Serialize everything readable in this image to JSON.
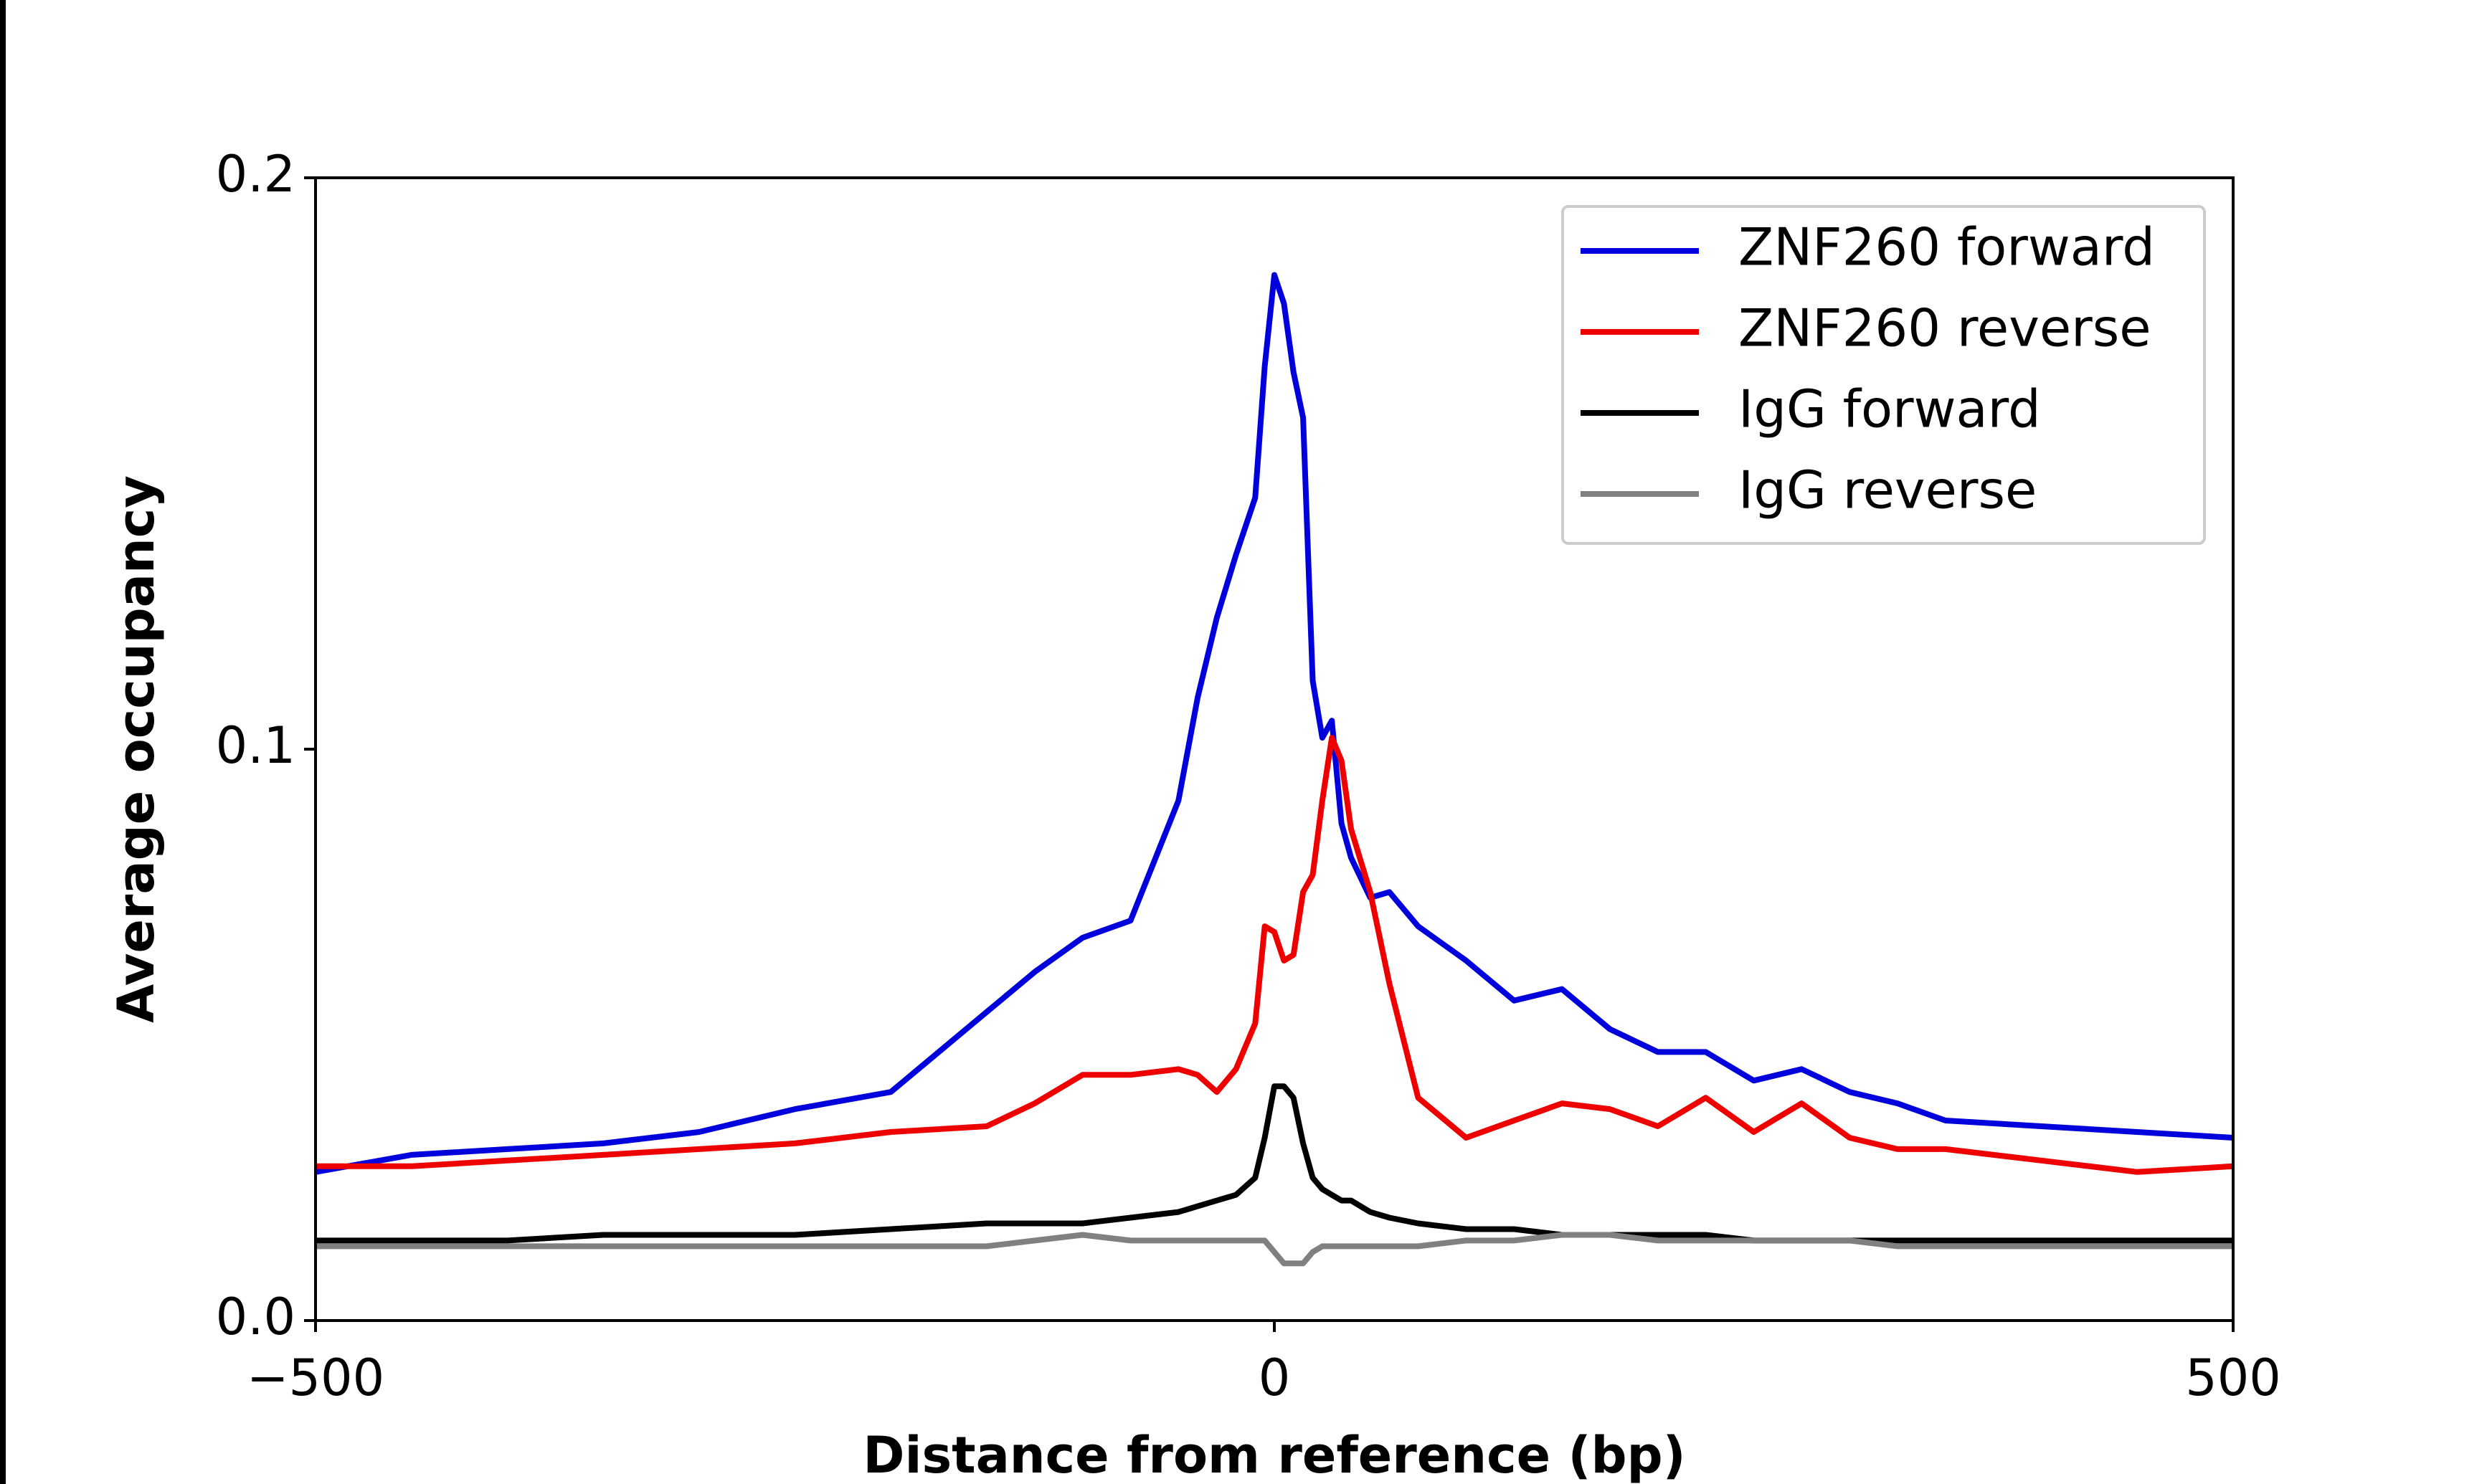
{
  "chart_data": {
    "type": "line",
    "xlabel": "Distance from reference (bp)",
    "ylabel": "Average occupancy",
    "x": [
      -500,
      -450,
      -400,
      -350,
      -300,
      -250,
      -200,
      -150,
      -125,
      -100,
      -75,
      -50,
      -40,
      -30,
      -20,
      -10,
      -5,
      0,
      5,
      10,
      15,
      20,
      25,
      30,
      35,
      40,
      50,
      60,
      75,
      100,
      125,
      150,
      175,
      200,
      225,
      250,
      275,
      300,
      325,
      350,
      400,
      450,
      500
    ],
    "series": [
      {
        "name": "ZNF260 forward",
        "color": "#0000dd",
        "values": [
          0.026,
          0.029,
          0.03,
          0.031,
          0.033,
          0.037,
          0.04,
          0.054,
          0.061,
          0.067,
          0.07,
          0.091,
          0.109,
          0.123,
          0.134,
          0.144,
          0.167,
          0.183,
          0.178,
          0.166,
          0.158,
          0.112,
          0.102,
          0.105,
          0.087,
          0.081,
          0.074,
          0.075,
          0.069,
          0.063,
          0.056,
          0.058,
          0.051,
          0.047,
          0.047,
          0.042,
          0.044,
          0.04,
          0.038,
          0.035,
          0.034,
          0.033,
          0.032
        ]
      },
      {
        "name": "ZNF260 reverse",
        "color": "#ee0000",
        "values": [
          0.027,
          0.027,
          0.028,
          0.029,
          0.03,
          0.031,
          0.033,
          0.034,
          0.038,
          0.043,
          0.043,
          0.044,
          0.043,
          0.04,
          0.044,
          0.052,
          0.069,
          0.068,
          0.063,
          0.064,
          0.075,
          0.078,
          0.091,
          0.102,
          0.098,
          0.086,
          0.075,
          0.059,
          0.039,
          0.032,
          0.035,
          0.038,
          0.037,
          0.034,
          0.039,
          0.033,
          0.038,
          0.032,
          0.03,
          0.03,
          0.028,
          0.026,
          0.027
        ]
      },
      {
        "name": "IgG forward",
        "color": "#000000",
        "values": [
          0.014,
          0.014,
          0.014,
          0.015,
          0.015,
          0.015,
          0.016,
          0.017,
          0.017,
          0.017,
          0.018,
          0.019,
          0.02,
          0.021,
          0.022,
          0.025,
          0.032,
          0.041,
          0.041,
          0.039,
          0.031,
          0.025,
          0.023,
          0.022,
          0.021,
          0.021,
          0.019,
          0.018,
          0.017,
          0.016,
          0.016,
          0.015,
          0.015,
          0.015,
          0.015,
          0.014,
          0.014,
          0.014,
          0.014,
          0.014,
          0.014,
          0.014,
          0.014
        ]
      },
      {
        "name": "IgG reverse",
        "color": "#808080",
        "values": [
          0.013,
          0.013,
          0.013,
          0.013,
          0.013,
          0.013,
          0.013,
          0.013,
          0.014,
          0.015,
          0.014,
          0.014,
          0.014,
          0.014,
          0.014,
          0.014,
          0.014,
          0.012,
          0.01,
          0.01,
          0.01,
          0.012,
          0.013,
          0.013,
          0.013,
          0.013,
          0.013,
          0.013,
          0.013,
          0.014,
          0.014,
          0.015,
          0.015,
          0.014,
          0.014,
          0.014,
          0.014,
          0.014,
          0.013,
          0.013,
          0.013,
          0.013,
          0.013
        ]
      }
    ],
    "xlim": [
      -500,
      500
    ],
    "ylim": [
      0,
      0.2
    ],
    "xticks": [
      {
        "value": -500,
        "label": "−500"
      },
      0,
      500
    ],
    "yticks": [
      {
        "value": 0,
        "label": "0.0"
      },
      0.1,
      0.2
    ],
    "legend": "upper right"
  }
}
